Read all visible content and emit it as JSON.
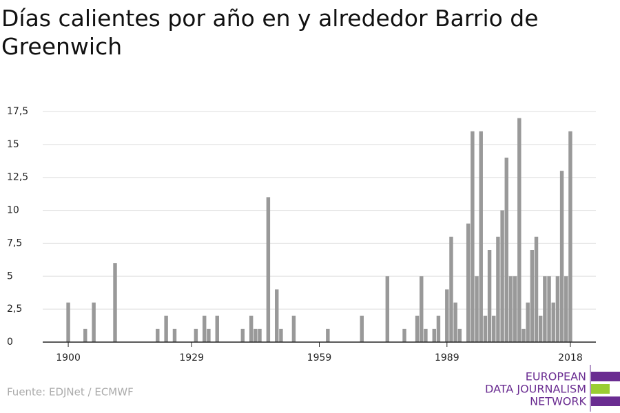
{
  "chart_data": {
    "type": "bar",
    "title": "Días calientes por año en y alrededor Barrio de Greenwich",
    "source": "Fuente: EDJNet / ECMWF",
    "logo": [
      "EUROPEAN",
      "DATA JOURNALISM",
      "NETWORK"
    ],
    "color": "#999999",
    "x": [
      1900,
      1904,
      1906,
      1911,
      1921,
      1923,
      1925,
      1930,
      1932,
      1933,
      1935,
      1941,
      1943,
      1944,
      1945,
      1947,
      1949,
      1950,
      1953,
      1961,
      1969,
      1975,
      1979,
      1982,
      1983,
      1984,
      1986,
      1987,
      1989,
      1990,
      1991,
      1992,
      1994,
      1995,
      1996,
      1997,
      1998,
      1999,
      2000,
      2001,
      2002,
      2003,
      2004,
      2005,
      2006,
      2007,
      2008,
      2009,
      2010,
      2011,
      2012,
      2013,
      2014,
      2015,
      2016,
      2017,
      2018
    ],
    "values": [
      3,
      1,
      3,
      6,
      1,
      2,
      1,
      1,
      2,
      1,
      2,
      1,
      2,
      1,
      1,
      11,
      4,
      1,
      2,
      1,
      2,
      5,
      1,
      2,
      5,
      1,
      1,
      2,
      4,
      8,
      3,
      1,
      9,
      16,
      5,
      16,
      2,
      7,
      2,
      8,
      10,
      14,
      5,
      5,
      17,
      1,
      3,
      7,
      8,
      2,
      5,
      5,
      3,
      5,
      13,
      5,
      16
    ],
    "xlim": [
      1894,
      2024
    ],
    "xticks": [
      1900,
      1929,
      1959,
      1989,
      2018
    ],
    "ylim": [
      0,
      17.5
    ],
    "yticks": [
      0,
      {
        "value": 2.5,
        "label": "2,5"
      },
      5,
      {
        "value": 7.5,
        "label": "7,5"
      },
      10,
      {
        "value": 12.5,
        "label": "12,5"
      },
      15,
      {
        "value": 17.5,
        "label": "17,5"
      }
    ],
    "grid": true
  }
}
